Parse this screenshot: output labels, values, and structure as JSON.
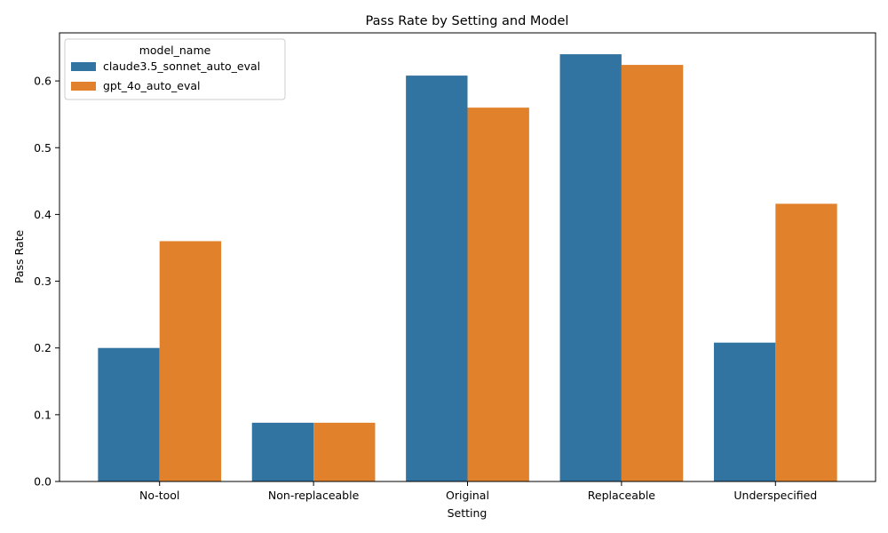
{
  "chart_data": {
    "type": "bar",
    "title": "Pass Rate by Setting and Model",
    "xlabel": "Setting",
    "ylabel": "Pass Rate",
    "categories": [
      "No-tool",
      "Non-replaceable",
      "Original",
      "Replaceable",
      "Underspecified"
    ],
    "series": [
      {
        "name": "claude3.5_sonnet_auto_eval",
        "color": "#3274a1",
        "values": [
          0.2,
          0.088,
          0.608,
          0.64,
          0.208
        ]
      },
      {
        "name": "gpt_4o_auto_eval",
        "color": "#e1812c",
        "values": [
          0.36,
          0.088,
          0.56,
          0.624,
          0.416
        ]
      }
    ],
    "ylim": [
      0,
      0.672
    ],
    "yticks": [
      0.0,
      0.1,
      0.2,
      0.3,
      0.4,
      0.5,
      0.6
    ],
    "ytick_labels": [
      "0.0",
      "0.1",
      "0.2",
      "0.3",
      "0.4",
      "0.5",
      "0.6"
    ],
    "legend": {
      "title": "model_name",
      "placement": "top-left"
    },
    "grid": false
  }
}
